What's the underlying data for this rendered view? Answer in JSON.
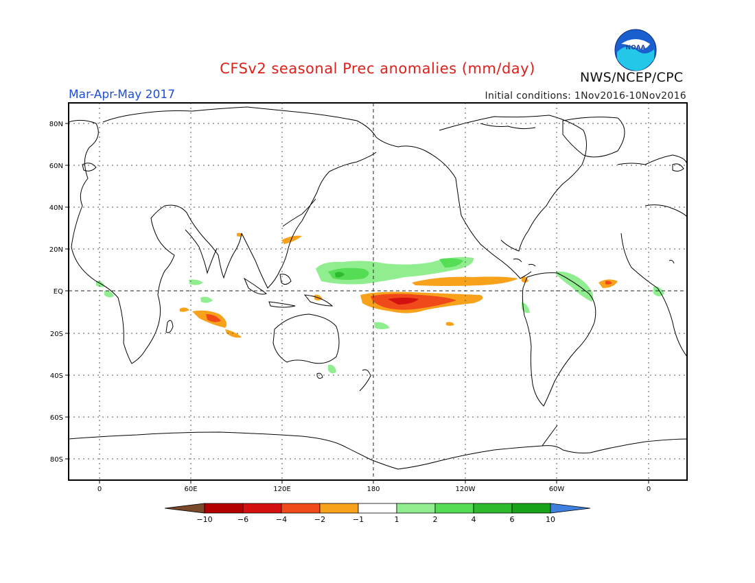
{
  "header": {
    "title": "CFSv2 seasonal Prec anomalies (mm/day)",
    "season": "Mar-Apr-May 2017",
    "initial_conditions": "Initial conditions: 1Nov2016-10Nov2016",
    "agency": "NWS/NCEP/CPC",
    "logo_text": "NOAA"
  },
  "map": {
    "lat_ticks": [
      "80N",
      "60N",
      "40N",
      "20N",
      "EQ",
      "20S",
      "40S",
      "60S",
      "80S"
    ],
    "lon_ticks": [
      "0",
      "60E",
      "120E",
      "180",
      "120W",
      "60W",
      "0"
    ]
  },
  "colorbar": {
    "labels": [
      "-10",
      "-6",
      "-4",
      "-2",
      "-1",
      "1",
      "2",
      "4",
      "6",
      "10"
    ],
    "colors": [
      "#7a4a2a",
      "#b30000",
      "#d41010",
      "#f04a1a",
      "#f7a21a",
      "#ffffff",
      "#90ee90",
      "#55dd55",
      "#2dbb2d",
      "#17a317",
      "#3f7fe0"
    ]
  },
  "chart_data": {
    "type": "heatmap",
    "title": "CFSv2 seasonal Prec anomalies (mm/day)",
    "lon_range": [
      -20,
      380
    ],
    "lat_range": [
      -90,
      90
    ],
    "anomaly_regions": [
      {
        "name": "central equatorial Pacific",
        "lon": [
          170,
          230
        ],
        "lat": [
          -12,
          0
        ],
        "value": -4.5
      },
      {
        "name": "eastern equatorial Pacific band",
        "lon": [
          200,
          270
        ],
        "lat": [
          2,
          6
        ],
        "value": -1.5
      },
      {
        "name": "west-central Pacific north of equator",
        "lon": [
          150,
          230
        ],
        "lat": [
          4,
          18
        ],
        "value": 2.5
      },
      {
        "name": "south Indian Ocean",
        "lon": [
          60,
          95
        ],
        "lat": [
          -25,
          -8
        ],
        "value": -3
      },
      {
        "name": "tropical Atlantic",
        "lon": [
          325,
          340
        ],
        "lat": [
          2,
          6
        ],
        "value": -2
      },
      {
        "name": "equatorial Atlantic / Amazon",
        "lon": [
          280,
          320
        ],
        "lat": [
          -10,
          10
        ],
        "value": 1.5
      },
      {
        "name": "Gulf of Guinea",
        "lon": [
          0,
          15
        ],
        "lat": [
          -5,
          5
        ],
        "value": 1.5
      }
    ]
  }
}
